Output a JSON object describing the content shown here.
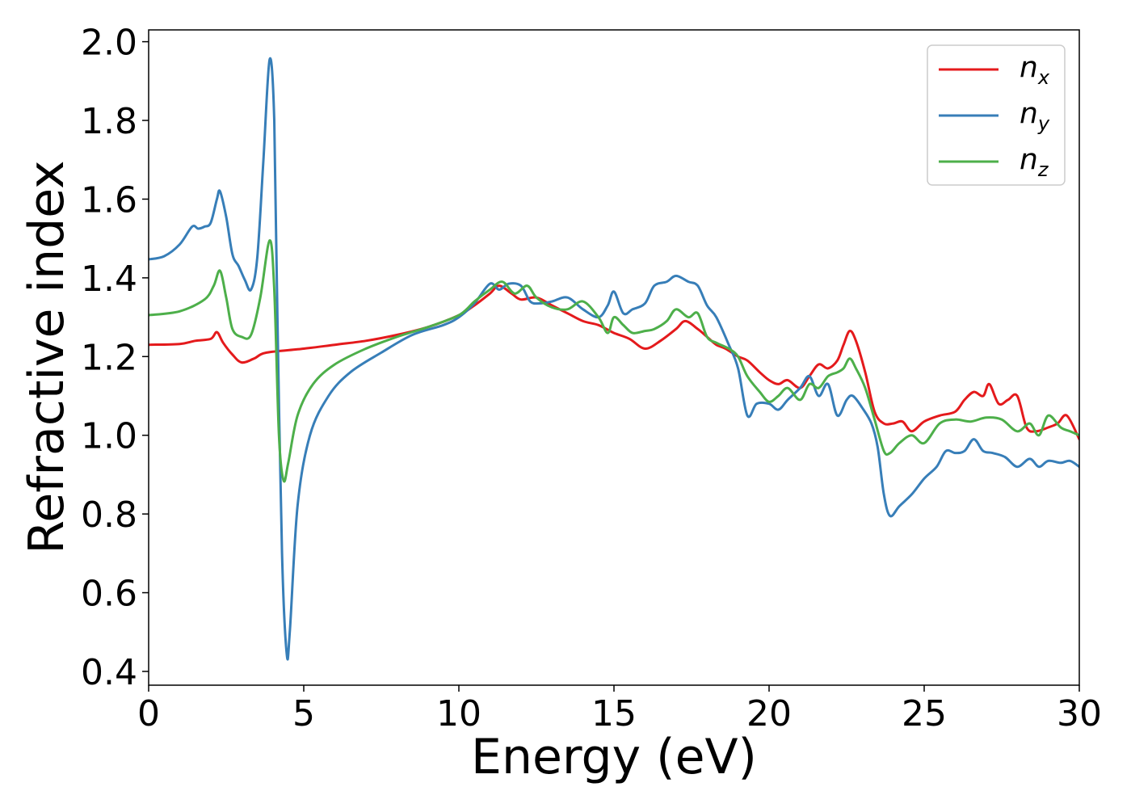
{
  "chart_data": {
    "type": "line",
    "title": "",
    "xlabel": "Energy (eV)",
    "ylabel": "Refractive index",
    "xlim": [
      0,
      30
    ],
    "ylim": [
      0.365,
      2.03
    ],
    "xticks": [
      0,
      5,
      10,
      15,
      20,
      25,
      30
    ],
    "yticks": [
      0.4,
      0.6,
      0.8,
      1.0,
      1.2,
      1.4,
      1.6,
      1.8,
      2.0
    ],
    "xtick_labels": [
      "0",
      "5",
      "10",
      "15",
      "20",
      "25",
      "30"
    ],
    "ytick_labels": [
      "0.4",
      "0.6",
      "0.8",
      "1.0",
      "1.2",
      "1.4",
      "1.6",
      "1.8",
      "2.0"
    ],
    "grid": false,
    "legend_position": "top-right",
    "series": [
      {
        "name": "n_x",
        "label_main": "n",
        "label_sub": "x",
        "color": "#e41a1c",
        "points": [
          [
            0,
            1.23
          ],
          [
            1.0,
            1.232
          ],
          [
            1.5,
            1.24
          ],
          [
            2.0,
            1.245
          ],
          [
            2.2,
            1.262
          ],
          [
            2.4,
            1.235
          ],
          [
            2.7,
            1.205
          ],
          [
            3.0,
            1.185
          ],
          [
            3.4,
            1.195
          ],
          [
            3.8,
            1.21
          ],
          [
            5,
            1.22
          ],
          [
            6,
            1.23
          ],
          [
            7,
            1.24
          ],
          [
            8,
            1.255
          ],
          [
            9,
            1.275
          ],
          [
            10,
            1.305
          ],
          [
            10.5,
            1.33
          ],
          [
            11,
            1.36
          ],
          [
            11.3,
            1.38
          ],
          [
            11.7,
            1.36
          ],
          [
            12,
            1.345
          ],
          [
            12.5,
            1.35
          ],
          [
            13,
            1.33
          ],
          [
            13.5,
            1.31
          ],
          [
            14,
            1.29
          ],
          [
            14.5,
            1.28
          ],
          [
            15,
            1.26
          ],
          [
            15.5,
            1.245
          ],
          [
            16,
            1.22
          ],
          [
            16.5,
            1.24
          ],
          [
            17,
            1.27
          ],
          [
            17.3,
            1.29
          ],
          [
            17.7,
            1.27
          ],
          [
            18,
            1.25
          ],
          [
            18.3,
            1.23
          ],
          [
            18.6,
            1.22
          ],
          [
            19,
            1.2
          ],
          [
            19.3,
            1.19
          ],
          [
            19.7,
            1.16
          ],
          [
            20,
            1.14
          ],
          [
            20.3,
            1.13
          ],
          [
            20.6,
            1.14
          ],
          [
            21,
            1.12
          ],
          [
            21.3,
            1.15
          ],
          [
            21.6,
            1.18
          ],
          [
            21.9,
            1.17
          ],
          [
            22.2,
            1.19
          ],
          [
            22.4,
            1.23
          ],
          [
            22.6,
            1.265
          ],
          [
            22.8,
            1.24
          ],
          [
            23.1,
            1.16
          ],
          [
            23.4,
            1.06
          ],
          [
            23.7,
            1.03
          ],
          [
            24,
            1.03
          ],
          [
            24.3,
            1.035
          ],
          [
            24.6,
            1.01
          ],
          [
            25,
            1.035
          ],
          [
            25.5,
            1.05
          ],
          [
            26,
            1.06
          ],
          [
            26.3,
            1.09
          ],
          [
            26.6,
            1.11
          ],
          [
            26.9,
            1.1
          ],
          [
            27.1,
            1.13
          ],
          [
            27.4,
            1.08
          ],
          [
            27.7,
            1.09
          ],
          [
            28,
            1.1
          ],
          [
            28.3,
            1.02
          ],
          [
            28.6,
            1.01
          ],
          [
            29,
            1.02
          ],
          [
            29.3,
            1.03
          ],
          [
            29.6,
            1.05
          ],
          [
            30,
            0.99
          ]
        ]
      },
      {
        "name": "n_y",
        "label_main": "n",
        "label_sub": "y",
        "color": "#377eb8",
        "points": [
          [
            0,
            1.447
          ],
          [
            0.5,
            1.455
          ],
          [
            1.0,
            1.485
          ],
          [
            1.4,
            1.53
          ],
          [
            1.6,
            1.525
          ],
          [
            1.8,
            1.53
          ],
          [
            2.0,
            1.54
          ],
          [
            2.2,
            1.6
          ],
          [
            2.3,
            1.62
          ],
          [
            2.5,
            1.555
          ],
          [
            2.7,
            1.46
          ],
          [
            2.9,
            1.43
          ],
          [
            3.1,
            1.395
          ],
          [
            3.3,
            1.37
          ],
          [
            3.5,
            1.45
          ],
          [
            3.7,
            1.7
          ],
          [
            3.9,
            1.955
          ],
          [
            4.05,
            1.8
          ],
          [
            4.15,
            1.3
          ],
          [
            4.3,
            0.7
          ],
          [
            4.45,
            0.445
          ],
          [
            4.55,
            0.5
          ],
          [
            4.8,
            0.82
          ],
          [
            5.2,
            1.0
          ],
          [
            5.8,
            1.1
          ],
          [
            6.5,
            1.16
          ],
          [
            7.5,
            1.21
          ],
          [
            8.5,
            1.255
          ],
          [
            9.5,
            1.28
          ],
          [
            10,
            1.3
          ],
          [
            10.5,
            1.335
          ],
          [
            11,
            1.385
          ],
          [
            11.3,
            1.37
          ],
          [
            11.6,
            1.385
          ],
          [
            12,
            1.38
          ],
          [
            12.3,
            1.34
          ],
          [
            12.6,
            1.335
          ],
          [
            13,
            1.34
          ],
          [
            13.5,
            1.35
          ],
          [
            14,
            1.32
          ],
          [
            14.5,
            1.3
          ],
          [
            14.8,
            1.33
          ],
          [
            15,
            1.365
          ],
          [
            15.3,
            1.31
          ],
          [
            15.6,
            1.32
          ],
          [
            16,
            1.335
          ],
          [
            16.3,
            1.38
          ],
          [
            16.7,
            1.39
          ],
          [
            17,
            1.405
          ],
          [
            17.4,
            1.39
          ],
          [
            17.7,
            1.38
          ],
          [
            18,
            1.33
          ],
          [
            18.3,
            1.3
          ],
          [
            18.7,
            1.23
          ],
          [
            19,
            1.17
          ],
          [
            19.3,
            1.05
          ],
          [
            19.6,
            1.08
          ],
          [
            20,
            1.08
          ],
          [
            20.3,
            1.065
          ],
          [
            20.6,
            1.09
          ],
          [
            21,
            1.12
          ],
          [
            21.3,
            1.15
          ],
          [
            21.6,
            1.1
          ],
          [
            21.9,
            1.13
          ],
          [
            22.2,
            1.05
          ],
          [
            22.5,
            1.09
          ],
          [
            22.7,
            1.1
          ],
          [
            23,
            1.07
          ],
          [
            23.3,
            1.03
          ],
          [
            23.5,
            0.97
          ],
          [
            23.7,
            0.85
          ],
          [
            23.9,
            0.795
          ],
          [
            24.2,
            0.82
          ],
          [
            24.6,
            0.85
          ],
          [
            25,
            0.89
          ],
          [
            25.4,
            0.92
          ],
          [
            25.7,
            0.96
          ],
          [
            26,
            0.955
          ],
          [
            26.3,
            0.96
          ],
          [
            26.6,
            0.99
          ],
          [
            26.9,
            0.96
          ],
          [
            27.2,
            0.955
          ],
          [
            27.6,
            0.945
          ],
          [
            28,
            0.92
          ],
          [
            28.4,
            0.94
          ],
          [
            28.7,
            0.92
          ],
          [
            29,
            0.935
          ],
          [
            29.4,
            0.93
          ],
          [
            29.7,
            0.935
          ],
          [
            30,
            0.92
          ]
        ]
      },
      {
        "name": "n_z",
        "label_main": "n",
        "label_sub": "z",
        "color": "#4daf4a",
        "points": [
          [
            0,
            1.305
          ],
          [
            1.0,
            1.315
          ],
          [
            1.8,
            1.345
          ],
          [
            2.1,
            1.38
          ],
          [
            2.3,
            1.418
          ],
          [
            2.5,
            1.35
          ],
          [
            2.7,
            1.27
          ],
          [
            3.0,
            1.25
          ],
          [
            3.3,
            1.255
          ],
          [
            3.6,
            1.35
          ],
          [
            3.9,
            1.495
          ],
          [
            4.05,
            1.37
          ],
          [
            4.2,
            1.0
          ],
          [
            4.35,
            0.885
          ],
          [
            4.5,
            0.93
          ],
          [
            4.8,
            1.05
          ],
          [
            5.3,
            1.13
          ],
          [
            6,
            1.18
          ],
          [
            7,
            1.22
          ],
          [
            8,
            1.25
          ],
          [
            9,
            1.275
          ],
          [
            10,
            1.305
          ],
          [
            10.5,
            1.34
          ],
          [
            11,
            1.37
          ],
          [
            11.4,
            1.39
          ],
          [
            11.8,
            1.36
          ],
          [
            12.2,
            1.38
          ],
          [
            12.5,
            1.35
          ],
          [
            13,
            1.325
          ],
          [
            13.5,
            1.32
          ],
          [
            14,
            1.34
          ],
          [
            14.5,
            1.3
          ],
          [
            14.8,
            1.26
          ],
          [
            15,
            1.3
          ],
          [
            15.3,
            1.28
          ],
          [
            15.6,
            1.26
          ],
          [
            16,
            1.265
          ],
          [
            16.3,
            1.27
          ],
          [
            16.7,
            1.29
          ],
          [
            17,
            1.32
          ],
          [
            17.4,
            1.3
          ],
          [
            17.7,
            1.31
          ],
          [
            18,
            1.25
          ],
          [
            18.3,
            1.235
          ],
          [
            18.7,
            1.22
          ],
          [
            19,
            1.2
          ],
          [
            19.3,
            1.15
          ],
          [
            19.7,
            1.11
          ],
          [
            20,
            1.085
          ],
          [
            20.3,
            1.1
          ],
          [
            20.6,
            1.12
          ],
          [
            21,
            1.09
          ],
          [
            21.3,
            1.13
          ],
          [
            21.6,
            1.12
          ],
          [
            21.9,
            1.15
          ],
          [
            22.2,
            1.16
          ],
          [
            22.4,
            1.17
          ],
          [
            22.6,
            1.195
          ],
          [
            22.8,
            1.17
          ],
          [
            23.1,
            1.12
          ],
          [
            23.4,
            1.04
          ],
          [
            23.7,
            0.96
          ],
          [
            23.9,
            0.955
          ],
          [
            24.2,
            0.98
          ],
          [
            24.6,
            1.0
          ],
          [
            25,
            0.98
          ],
          [
            25.5,
            1.03
          ],
          [
            26,
            1.04
          ],
          [
            26.5,
            1.035
          ],
          [
            27,
            1.045
          ],
          [
            27.5,
            1.04
          ],
          [
            28,
            1.01
          ],
          [
            28.4,
            1.03
          ],
          [
            28.7,
            1.0
          ],
          [
            29,
            1.05
          ],
          [
            29.4,
            1.02
          ],
          [
            29.7,
            1.01
          ],
          [
            30,
            1.0
          ]
        ]
      }
    ]
  }
}
